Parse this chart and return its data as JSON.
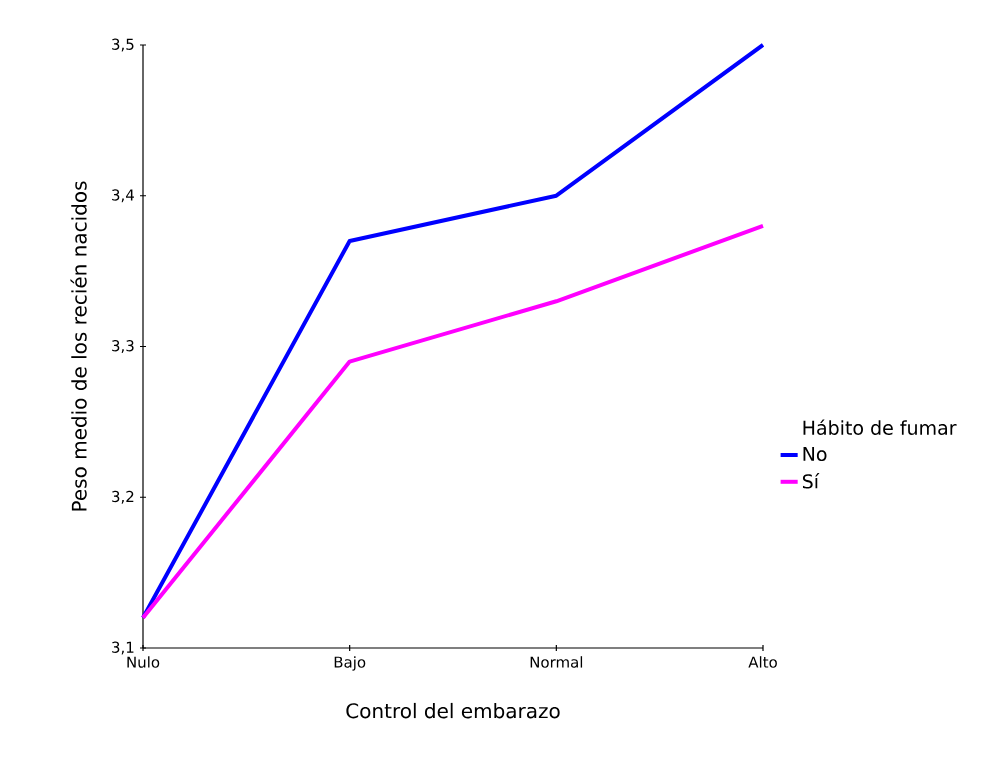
{
  "chart_data": {
    "type": "line",
    "xlabel": "Control del embarazo",
    "ylabel": "Peso medio de los recién nacidos",
    "legend_title": "Hábito de fumar",
    "categories": [
      "Nulo",
      "Bajo",
      "Normal",
      "Alto"
    ],
    "series": [
      {
        "name": "No",
        "color": "#0000ff",
        "values": [
          3.12,
          3.37,
          3.4,
          3.5
        ]
      },
      {
        "name": "Sí",
        "color": "#ff00ff",
        "values": [
          3.12,
          3.29,
          3.33,
          3.38
        ]
      }
    ],
    "ylim": [
      3.1,
      3.5
    ],
    "yticks": [
      {
        "value": 3.1,
        "label": "3,1"
      },
      {
        "value": 3.2,
        "label": "3,2"
      },
      {
        "value": 3.3,
        "label": "3,3"
      },
      {
        "value": 3.4,
        "label": "3,4"
      },
      {
        "value": 3.5,
        "label": "3,5"
      }
    ],
    "legend": "right",
    "grid": false,
    "marker": "none",
    "line_style": "solid"
  }
}
